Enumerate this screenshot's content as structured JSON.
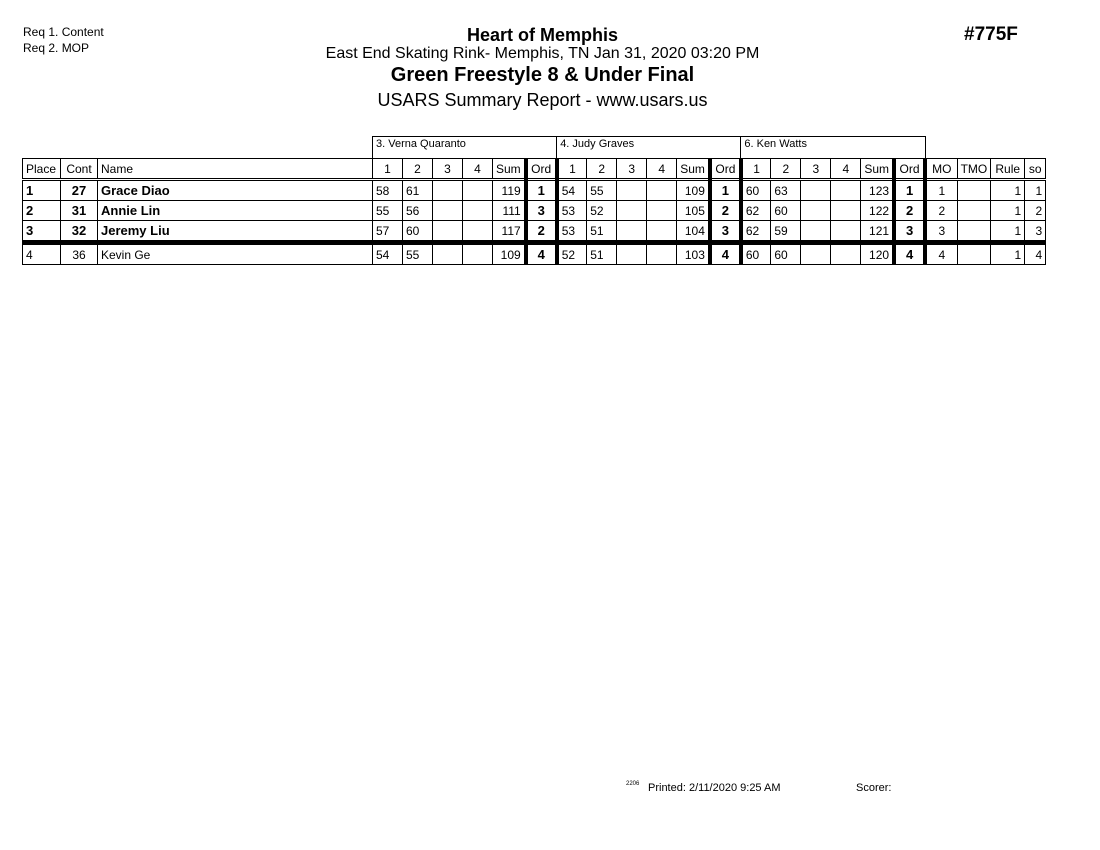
{
  "requirements": [
    "Req 1.  Content",
    "Req 2.  MOP"
  ],
  "header": {
    "event": "Heart of Memphis",
    "venue": "East End Skating Rink- Memphis, TN  Jan 31, 2020  03:20 PM",
    "title": "Green Freestyle 8 & Under Final",
    "subtitle": "USARS Summary Report - www.usars.us",
    "code": "#775F"
  },
  "judges": [
    "3.  Verna Quaranto",
    "4.  Judy Graves",
    "6.  Ken Watts"
  ],
  "columns": {
    "place": "Place",
    "cont": "Cont",
    "name": "Name",
    "scores": [
      "1",
      "2",
      "3",
      "4"
    ],
    "sum": "Sum",
    "ord": "Ord",
    "mo": "MO",
    "tmo": "TMO",
    "rule": "Rule",
    "so": "so"
  },
  "rows": [
    {
      "place": "1",
      "cont": "27",
      "name": "Grace Diao",
      "bold": true,
      "judges": [
        {
          "s": [
            "58",
            "61",
            "",
            ""
          ],
          "sum": "119",
          "ord": "1"
        },
        {
          "s": [
            "54",
            "55",
            "",
            ""
          ],
          "sum": "109",
          "ord": "1"
        },
        {
          "s": [
            "60",
            "63",
            "",
            ""
          ],
          "sum": "123",
          "ord": "1"
        }
      ],
      "mo": "1",
      "tmo": "",
      "rule": "1",
      "so": "1"
    },
    {
      "place": "2",
      "cont": "31",
      "name": "Annie Lin",
      "bold": true,
      "judges": [
        {
          "s": [
            "55",
            "56",
            "",
            ""
          ],
          "sum": "111",
          "ord": "3"
        },
        {
          "s": [
            "53",
            "52",
            "",
            ""
          ],
          "sum": "105",
          "ord": "2"
        },
        {
          "s": [
            "62",
            "60",
            "",
            ""
          ],
          "sum": "122",
          "ord": "2"
        }
      ],
      "mo": "2",
      "tmo": "",
      "rule": "1",
      "so": "2"
    },
    {
      "place": "3",
      "cont": "32",
      "name": "Jeremy Liu",
      "bold": true,
      "judges": [
        {
          "s": [
            "57",
            "60",
            "",
            ""
          ],
          "sum": "117",
          "ord": "2"
        },
        {
          "s": [
            "53",
            "51",
            "",
            ""
          ],
          "sum": "104",
          "ord": "3"
        },
        {
          "s": [
            "62",
            "59",
            "",
            ""
          ],
          "sum": "121",
          "ord": "3"
        }
      ],
      "mo": "3",
      "tmo": "",
      "rule": "1",
      "so": "3"
    },
    {
      "place": "4",
      "cont": "36",
      "name": "Kevin Ge",
      "bold": false,
      "judges": [
        {
          "s": [
            "54",
            "55",
            "",
            ""
          ],
          "sum": "109",
          "ord": "4"
        },
        {
          "s": [
            "52",
            "51",
            "",
            ""
          ],
          "sum": "103",
          "ord": "4"
        },
        {
          "s": [
            "60",
            "60",
            "",
            ""
          ],
          "sum": "120",
          "ord": "4"
        }
      ],
      "mo": "4",
      "tmo": "",
      "rule": "1",
      "so": "4"
    }
  ],
  "footer": {
    "version": "2206",
    "printed": "Printed:  2/11/2020  9:25 AM",
    "scorer": "Scorer:"
  }
}
